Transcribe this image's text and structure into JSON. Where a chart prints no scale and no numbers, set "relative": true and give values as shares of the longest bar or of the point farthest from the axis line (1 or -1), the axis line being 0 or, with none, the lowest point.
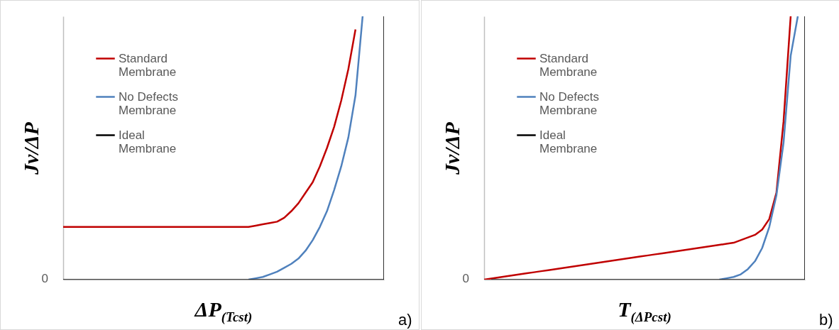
{
  "chart_data": [
    {
      "type": "line",
      "xlabel": "ΔP$_{(Tcst)}$",
      "ylabel": "Jv/ΔP",
      "relative": true,
      "legend": "top left",
      "annotations": [
        "a)",
        "0"
      ],
      "categories": [
        null,
        null,
        null,
        null,
        null,
        null,
        null,
        null,
        null,
        null,
        null,
        null,
        null,
        null,
        null,
        null,
        null,
        null,
        null,
        null,
        null,
        null,
        null,
        null,
        null,
        null,
        null,
        null,
        null,
        null,
        null,
        null,
        null,
        null,
        null,
        null,
        null,
        null,
        null,
        null,
        null,
        null,
        null,
        null,
        null,
        null
      ],
      "series": [
        {
          "name": "Standard Membrane",
          "color": "#c00000",
          "values": [
            0.2,
            0.2,
            0.2,
            0.2,
            0.2,
            0.2,
            0.2,
            0.2,
            0.2,
            0.2,
            0.2,
            0.2,
            0.2,
            0.2,
            0.2,
            0.2,
            0.2,
            0.2,
            0.2,
            0.2,
            0.2,
            0.2,
            0.2,
            0.2,
            0.2,
            0.2,
            0.2,
            0.205,
            0.21,
            0.215,
            0.22,
            0.235,
            0.26,
            0.29,
            0.33,
            0.37,
            0.43,
            0.5,
            0.58,
            0.68,
            0.8,
            0.95,
            null,
            null,
            null,
            null
          ]
        },
        {
          "name": "No Defects Membrane",
          "color": "#4f81bd",
          "values": [
            null,
            null,
            null,
            null,
            null,
            null,
            null,
            null,
            null,
            null,
            null,
            null,
            null,
            null,
            null,
            null,
            null,
            null,
            null,
            null,
            null,
            null,
            null,
            null,
            null,
            null,
            0,
            0.005,
            0.01,
            0.02,
            0.03,
            0.045,
            0.06,
            0.08,
            0.11,
            0.15,
            0.2,
            0.26,
            0.34,
            0.43,
            0.54,
            0.7,
            1,
            null,
            null,
            null
          ]
        },
        {
          "name": "Ideal Membrane",
          "color": "#000000",
          "type": "step",
          "values": [
            0,
            0,
            0,
            0,
            0,
            0,
            0,
            0,
            0,
            0,
            0,
            0,
            0,
            0,
            0,
            0,
            0,
            0,
            0,
            0,
            0,
            0,
            0,
            0,
            0,
            0,
            0,
            0,
            0,
            0,
            0,
            0,
            0,
            0,
            0,
            0,
            0,
            0,
            0,
            0,
            0,
            0,
            0,
            0,
            0,
            1
          ]
        }
      ]
    },
    {
      "type": "line",
      "xlabel": "T$_{(ΔPcst)}$",
      "ylabel": "Jv/ΔP",
      "relative": true,
      "legend": "top left",
      "annotations": [
        "b)",
        "0"
      ],
      "categories": [
        null,
        null,
        null,
        null,
        null,
        null,
        null,
        null,
        null,
        null,
        null,
        null,
        null,
        null,
        null,
        null,
        null,
        null,
        null,
        null,
        null,
        null,
        null,
        null,
        null,
        null,
        null,
        null,
        null,
        null,
        null,
        null,
        null,
        null,
        null,
        null,
        null,
        null,
        null,
        null,
        null,
        null,
        null,
        null,
        null,
        null
      ],
      "series": [
        {
          "name": "Standard Membrane",
          "color": "#c00000",
          "values": [
            0,
            0.004,
            0.008,
            0.012,
            0.016,
            0.02,
            0.024,
            0.028,
            0.032,
            0.036,
            0.04,
            0.044,
            0.048,
            0.052,
            0.056,
            0.06,
            0.064,
            0.068,
            0.072,
            0.076,
            0.08,
            0.084,
            0.088,
            0.092,
            0.096,
            0.1,
            0.104,
            0.108,
            0.112,
            0.116,
            0.12,
            0.124,
            0.128,
            0.132,
            0.136,
            0.14,
            0.15,
            0.16,
            0.17,
            0.19,
            0.23,
            0.33,
            0.6,
            1,
            null,
            null
          ]
        },
        {
          "name": "No Defects Membrane",
          "color": "#4f81bd",
          "values": [
            null,
            null,
            null,
            null,
            null,
            null,
            null,
            null,
            null,
            null,
            null,
            null,
            null,
            null,
            null,
            null,
            null,
            null,
            null,
            null,
            null,
            null,
            null,
            null,
            null,
            null,
            null,
            null,
            null,
            null,
            null,
            null,
            null,
            0,
            0.005,
            0.01,
            0.02,
            0.04,
            0.07,
            0.12,
            0.2,
            0.32,
            0.52,
            0.85,
            1,
            null
          ]
        },
        {
          "name": "Ideal Membrane",
          "color": "#000000",
          "type": "step",
          "values": [
            null,
            0,
            0,
            0,
            0,
            0,
            0,
            0,
            0,
            0,
            0,
            0,
            0,
            0,
            0,
            0,
            0,
            0,
            0,
            0,
            0,
            0,
            0,
            0,
            0,
            0,
            0,
            0,
            0,
            0,
            0,
            0,
            0,
            0,
            0,
            0,
            0,
            0,
            0,
            0,
            0,
            0,
            0,
            0,
            0,
            1
          ]
        }
      ]
    }
  ]
}
